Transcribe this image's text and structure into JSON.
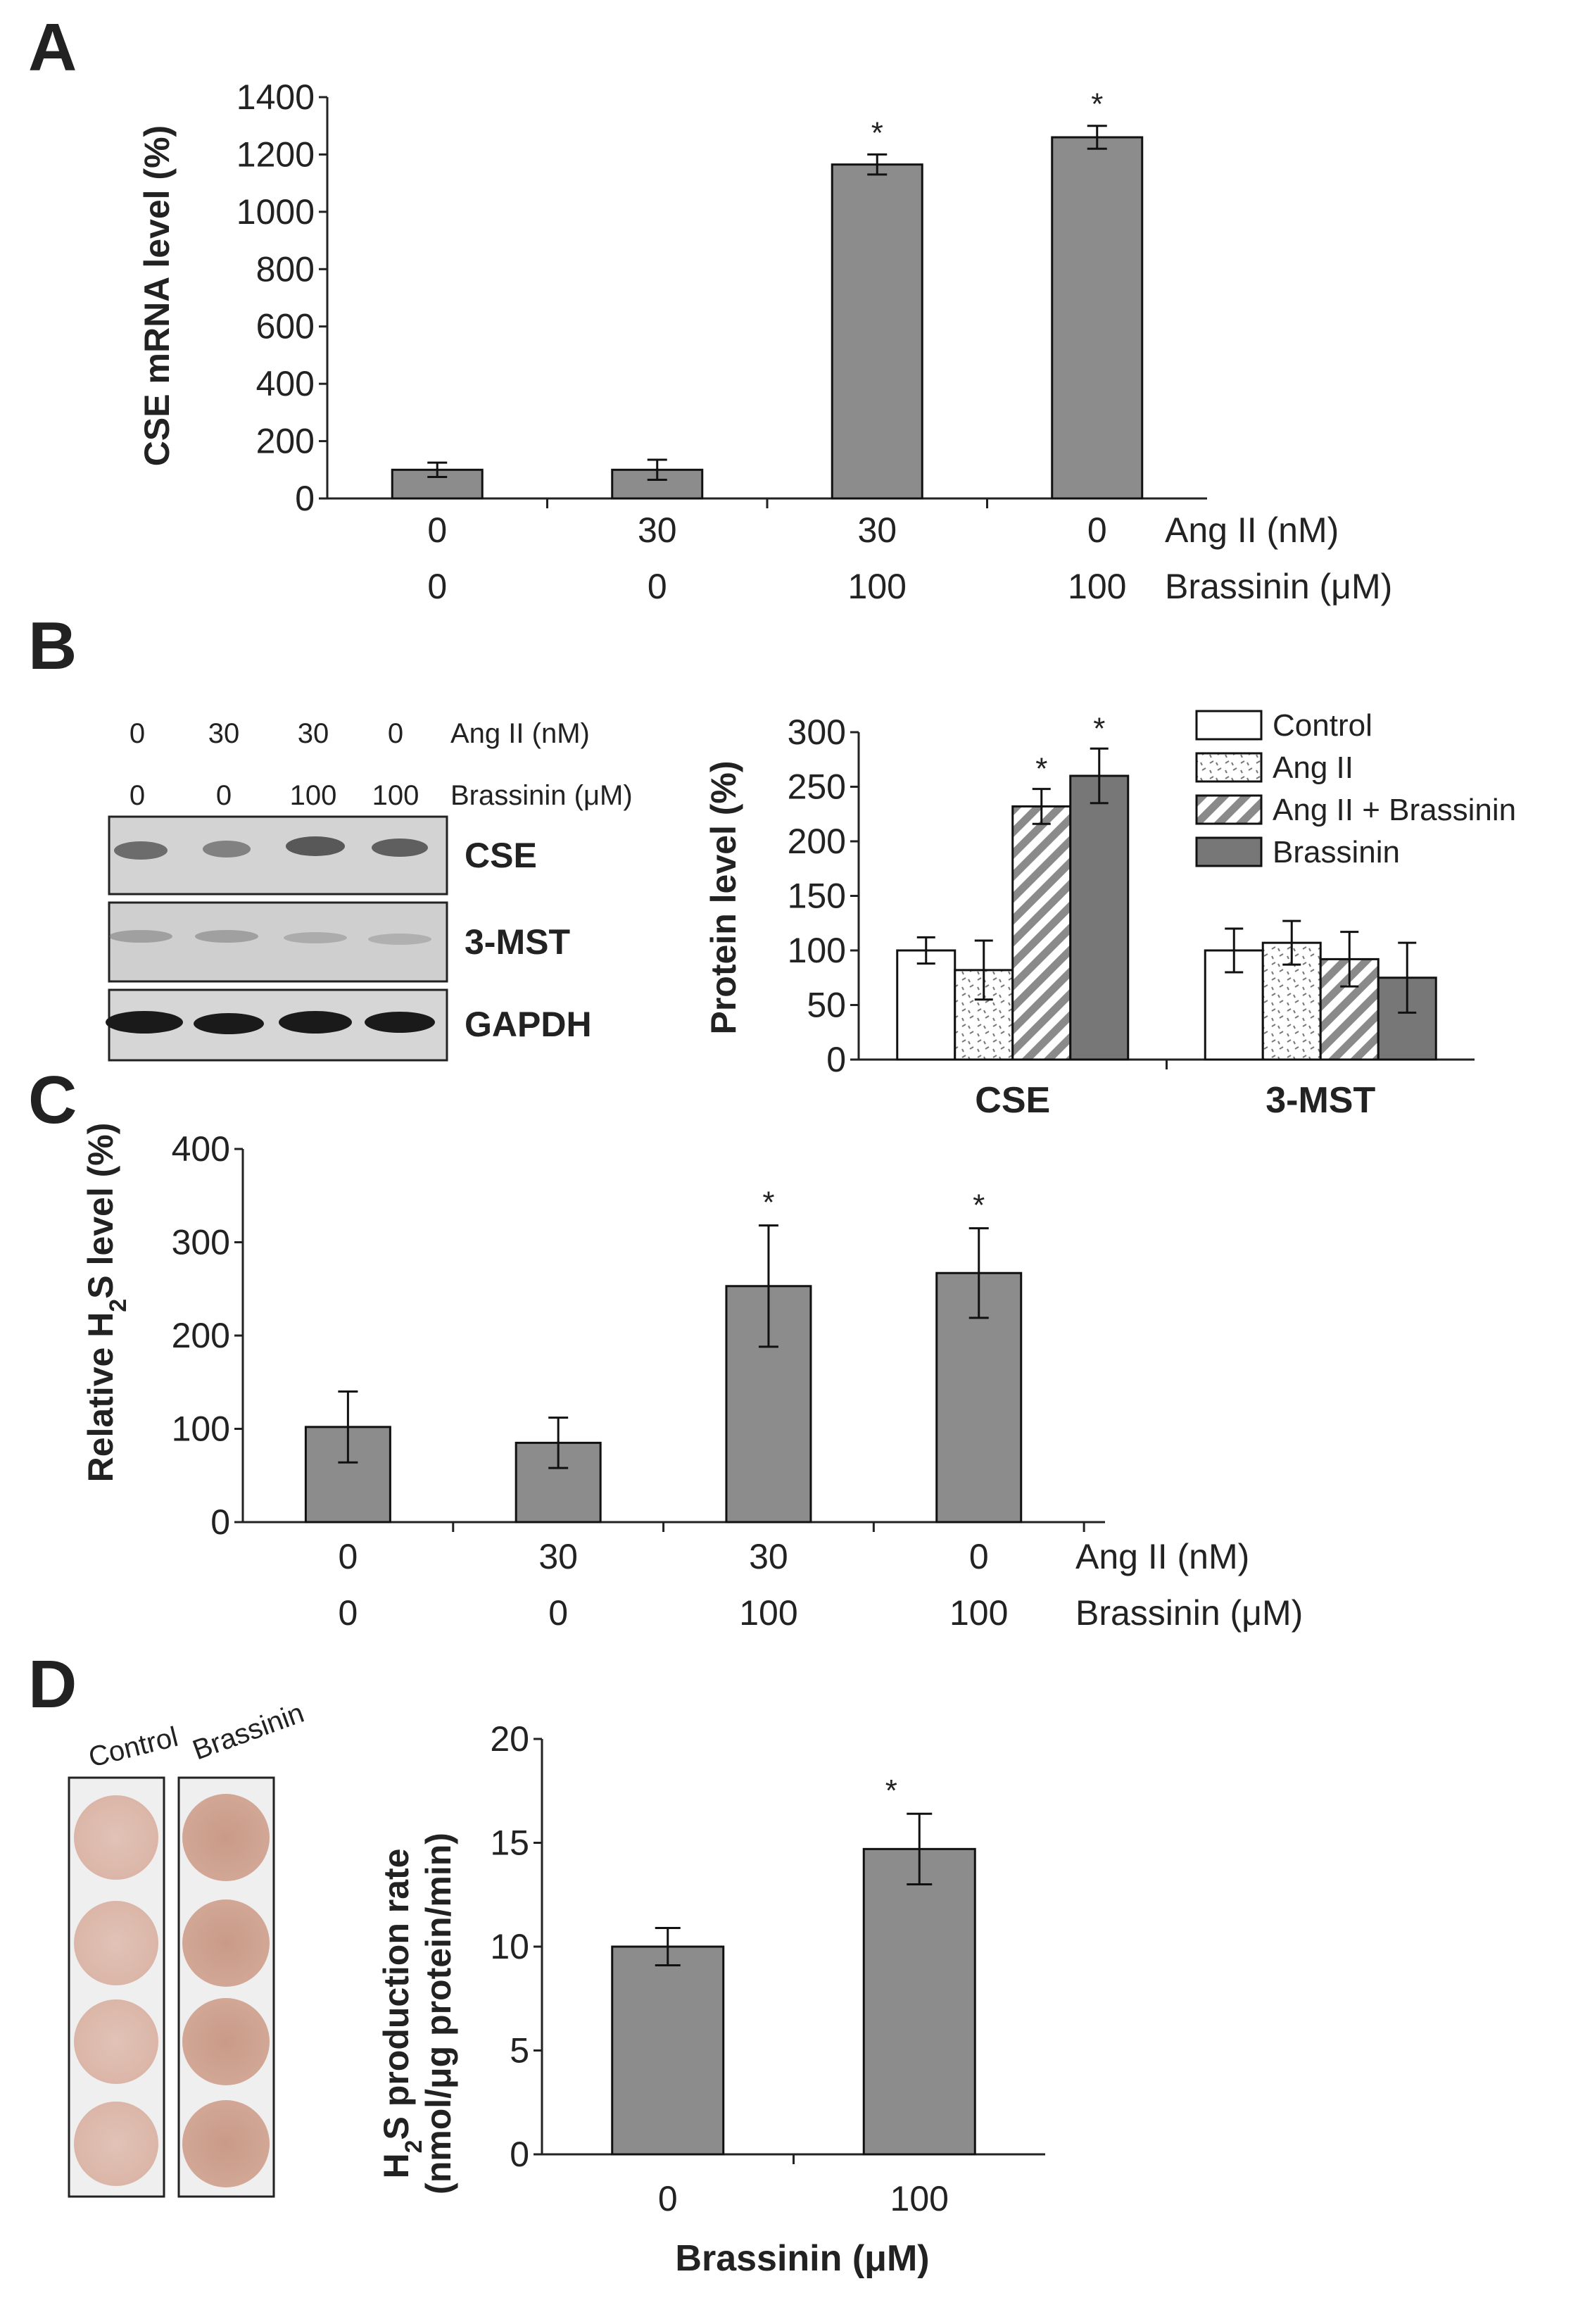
{
  "panel_labels": [
    "A",
    "B",
    "C",
    "D"
  ],
  "chart_data": [
    {
      "panel": "A",
      "type": "bar",
      "title": "",
      "ylabel": "CSE mRNA level (%)",
      "ylim": [
        0,
        1400
      ],
      "yticks": [
        0,
        200,
        400,
        600,
        800,
        1000,
        1200,
        1400
      ],
      "row_labels": [
        "Ang II (nM)",
        "Brassinin (μM)"
      ],
      "categories": [
        [
          "0",
          "0"
        ],
        [
          "30",
          "0"
        ],
        [
          "30",
          "100"
        ],
        [
          "0",
          "100"
        ]
      ],
      "values": [
        100,
        100,
        1165,
        1260
      ],
      "errors": [
        25,
        35,
        35,
        40
      ],
      "significance": [
        "",
        "",
        "*",
        "*"
      ],
      "grid": false
    },
    {
      "panel": "B",
      "type": "bar",
      "ylabel": "Protein level (%)",
      "ylim": [
        0,
        300
      ],
      "yticks": [
        0,
        50,
        100,
        150,
        200,
        250,
        300
      ],
      "categories": [
        "CSE",
        "3-MST"
      ],
      "legend_position": "top-right",
      "series": [
        {
          "name": "Control",
          "pattern": "white",
          "values": [
            100,
            100
          ],
          "errors": [
            12,
            20
          ],
          "significance": [
            "",
            ""
          ]
        },
        {
          "name": "Ang II",
          "pattern": "dots",
          "values": [
            82,
            107
          ],
          "errors": [
            27,
            20
          ],
          "significance": [
            "",
            ""
          ]
        },
        {
          "name": "Ang II + Brassinin",
          "pattern": "hatch",
          "values": [
            232,
            92
          ],
          "errors": [
            16,
            25
          ],
          "significance": [
            "*",
            ""
          ]
        },
        {
          "name": "Brassinin",
          "pattern": "dark",
          "values": [
            260,
            75
          ],
          "errors": [
            25,
            32
          ],
          "significance": [
            "*",
            ""
          ]
        }
      ],
      "grid": false
    },
    {
      "panel": "C",
      "type": "bar",
      "ylabel_main": "Relative H",
      "ylabel_sub": "2",
      "ylabel_rest": "S level (%)",
      "ylim": [
        0,
        400
      ],
      "yticks": [
        0,
        100,
        200,
        300,
        400
      ],
      "row_labels": [
        "Ang II (nM)",
        "Brassinin (μM)"
      ],
      "categories": [
        [
          "0",
          "0"
        ],
        [
          "30",
          "0"
        ],
        [
          "30",
          "100"
        ],
        [
          "0",
          "100"
        ]
      ],
      "values": [
        102,
        85,
        253,
        267
      ],
      "errors": [
        38,
        27,
        65,
        48
      ],
      "significance": [
        "",
        "",
        "*",
        "*"
      ],
      "grid": false
    },
    {
      "panel": "D",
      "type": "bar",
      "ylabel_line1_main": "H",
      "ylabel_line1_sub": "2",
      "ylabel_line1_rest": "S production rate",
      "ylabel_line2": "(nmol/μg protein/min)",
      "xlabel": "Brassinin (μM)",
      "ylim": [
        0,
        20
      ],
      "yticks": [
        0,
        5,
        10,
        15,
        20
      ],
      "categories": [
        "0",
        "100"
      ],
      "values": [
        10,
        14.7
      ],
      "errors": [
        0.9,
        1.7
      ],
      "significance": [
        "",
        "*"
      ],
      "grid": false
    }
  ],
  "western_blot": {
    "ang_row": [
      "0",
      "30",
      "30",
      "0"
    ],
    "ang_label": "Ang II (nM)",
    "bras_row": [
      "0",
      "0",
      "100",
      "100"
    ],
    "bras_label": "Brassinin (μM)",
    "bands": [
      "CSE",
      "3-MST",
      "GAPDH"
    ]
  },
  "assay_strip": {
    "labels": [
      "Control",
      "Brassinin"
    ]
  }
}
